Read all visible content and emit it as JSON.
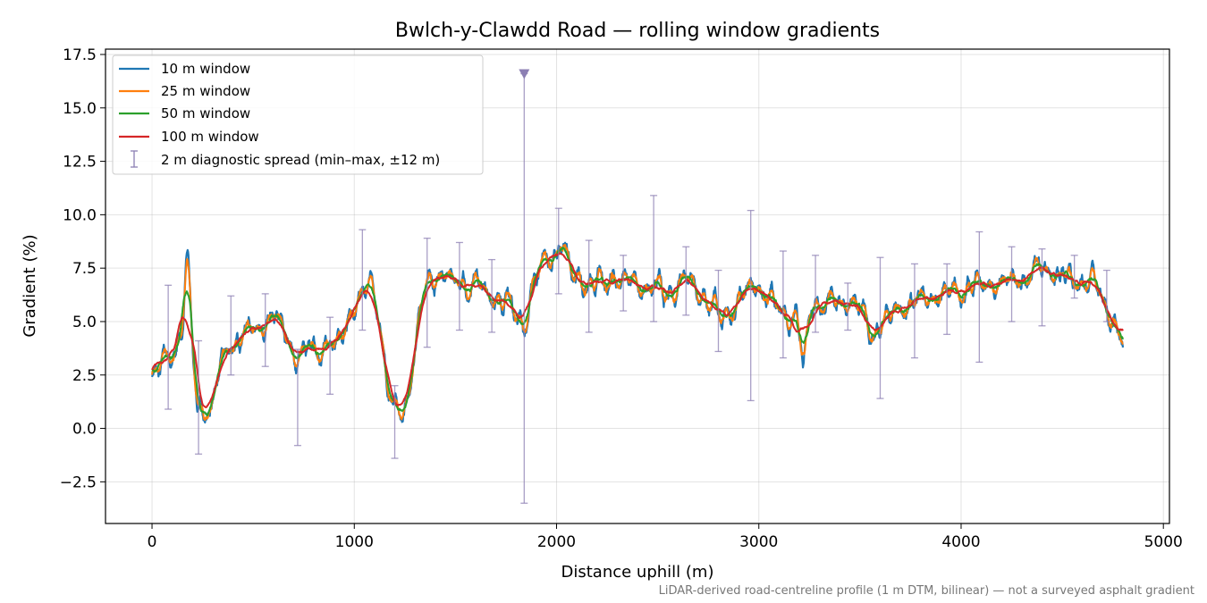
{
  "chart_data": {
    "type": "line",
    "title": "Bwlch-y-Clawdd Road — rolling window gradients",
    "xlabel": "Distance uphill (m)",
    "ylabel": "Gradient (%)",
    "xlim": [
      -230,
      5030
    ],
    "ylim": [
      -4.45,
      17.75
    ],
    "xticks": [
      0,
      1000,
      2000,
      3000,
      4000,
      5000
    ],
    "xtick_labels": [
      "0",
      "1000",
      "2000",
      "3000",
      "4000",
      "5000"
    ],
    "yticks": [
      -2.5,
      0.0,
      2.5,
      5.0,
      7.5,
      10.0,
      12.5,
      15.0,
      17.5
    ],
    "ytick_labels": [
      "−2.5",
      "0.0",
      "2.5",
      "5.0",
      "7.5",
      "10.0",
      "12.5",
      "15.0",
      "17.5"
    ],
    "grid": true,
    "legend_position": "top-left",
    "base_profile": [
      [
        0,
        2.0
      ],
      [
        40,
        2.9
      ],
      [
        80,
        3.4
      ],
      [
        120,
        3.8
      ],
      [
        150,
        4.3
      ],
      [
        175,
        8.4
      ],
      [
        200,
        3.5
      ],
      [
        225,
        1.2
      ],
      [
        260,
        0.8
      ],
      [
        300,
        0.7
      ],
      [
        330,
        2.5
      ],
      [
        370,
        3.9
      ],
      [
        420,
        4.2
      ],
      [
        470,
        4.6
      ],
      [
        530,
        4.8
      ],
      [
        600,
        5.2
      ],
      [
        660,
        4.6
      ],
      [
        710,
        3.4
      ],
      [
        760,
        3.7
      ],
      [
        810,
        4.1
      ],
      [
        860,
        3.9
      ],
      [
        900,
        3.6
      ],
      [
        950,
        4.7
      ],
      [
        1000,
        5.6
      ],
      [
        1050,
        6.2
      ],
      [
        1080,
        7.0
      ],
      [
        1100,
        6.6
      ],
      [
        1130,
        4.5
      ],
      [
        1160,
        2.2
      ],
      [
        1190,
        0.8
      ],
      [
        1230,
        0.2
      ],
      [
        1270,
        1.5
      ],
      [
        1310,
        4.3
      ],
      [
        1350,
        6.6
      ],
      [
        1400,
        7.2
      ],
      [
        1450,
        7.0
      ],
      [
        1500,
        6.8
      ],
      [
        1560,
        6.9
      ],
      [
        1620,
        6.3
      ],
      [
        1680,
        6.4
      ],
      [
        1730,
        6.0
      ],
      [
        1790,
        5.5
      ],
      [
        1840,
        4.8
      ],
      [
        1880,
        6.5
      ],
      [
        1930,
        7.9
      ],
      [
        1980,
        8.2
      ],
      [
        2010,
        8.4
      ],
      [
        2040,
        8.0
      ],
      [
        2080,
        7.1
      ],
      [
        2150,
        6.9
      ],
      [
        2230,
        6.8
      ],
      [
        2300,
        7.0
      ],
      [
        2380,
        6.8
      ],
      [
        2450,
        6.6
      ],
      [
        2520,
        6.4
      ],
      [
        2580,
        6.6
      ],
      [
        2650,
        7.0
      ],
      [
        2700,
        6.3
      ],
      [
        2760,
        5.6
      ],
      [
        2820,
        5.3
      ],
      [
        2880,
        5.7
      ],
      [
        2940,
        6.4
      ],
      [
        2990,
        6.9
      ],
      [
        3040,
        6.1
      ],
      [
        3090,
        5.7
      ],
      [
        3140,
        5.4
      ],
      [
        3180,
        5.4
      ],
      [
        3220,
        3.0
      ],
      [
        3260,
        5.8
      ],
      [
        3320,
        5.9
      ],
      [
        3380,
        5.8
      ],
      [
        3440,
        6.1
      ],
      [
        3500,
        5.3
      ],
      [
        3550,
        4.7
      ],
      [
        3620,
        5.0
      ],
      [
        3700,
        5.6
      ],
      [
        3800,
        6.0
      ],
      [
        3900,
        6.3
      ],
      [
        4000,
        6.6
      ],
      [
        4100,
        6.9
      ],
      [
        4200,
        6.6
      ],
      [
        4300,
        7.2
      ],
      [
        4400,
        7.4
      ],
      [
        4500,
        7.0
      ],
      [
        4600,
        6.8
      ],
      [
        4680,
        6.5
      ],
      [
        4740,
        5.3
      ],
      [
        4800,
        3.8
      ]
    ],
    "series": [
      {
        "name": "10 m window",
        "color": "#1f77b4",
        "window_m": 10
      },
      {
        "name": "25 m window",
        "color": "#ff7f0e",
        "window_m": 25
      },
      {
        "name": "50 m window",
        "color": "#2ca02c",
        "window_m": 50
      },
      {
        "name": "100 m window",
        "color": "#d62728",
        "window_m": 100
      }
    ],
    "spread": {
      "name": "2 m diagnostic spread (min–max, ±12 m)",
      "color": "#8c7fb3",
      "points": [
        [
          80,
          0.9,
          6.7
        ],
        [
          230,
          -1.2,
          4.1
        ],
        [
          390,
          2.5,
          6.2
        ],
        [
          560,
          2.9,
          6.3
        ],
        [
          720,
          -0.8,
          3.7
        ],
        [
          880,
          1.6,
          5.2
        ],
        [
          1040,
          4.6,
          9.3
        ],
        [
          1200,
          -1.4,
          2.0
        ],
        [
          1360,
          3.8,
          8.9
        ],
        [
          1520,
          4.6,
          8.7
        ],
        [
          1680,
          4.5,
          7.9
        ],
        [
          1840,
          -3.5,
          16.6
        ],
        [
          2010,
          6.3,
          10.3
        ],
        [
          2160,
          4.5,
          8.8
        ],
        [
          2330,
          5.5,
          8.1
        ],
        [
          2480,
          5.0,
          10.9
        ],
        [
          2640,
          5.3,
          8.5
        ],
        [
          2800,
          3.6,
          7.4
        ],
        [
          2960,
          1.3,
          10.2
        ],
        [
          3120,
          3.3,
          8.3
        ],
        [
          3280,
          4.5,
          8.1
        ],
        [
          3440,
          4.6,
          6.8
        ],
        [
          3600,
          1.4,
          8.0
        ],
        [
          3770,
          3.3,
          7.7
        ],
        [
          3930,
          4.4,
          7.7
        ],
        [
          4090,
          3.1,
          9.2
        ],
        [
          4250,
          5.0,
          8.5
        ],
        [
          4400,
          4.8,
          8.4
        ],
        [
          4560,
          6.1,
          8.1
        ],
        [
          4720,
          5.0,
          7.4
        ]
      ]
    },
    "footnote": "LiDAR-derived road-centreline profile (1 m DTM, bilinear) — not a surveyed asphalt gradient"
  }
}
